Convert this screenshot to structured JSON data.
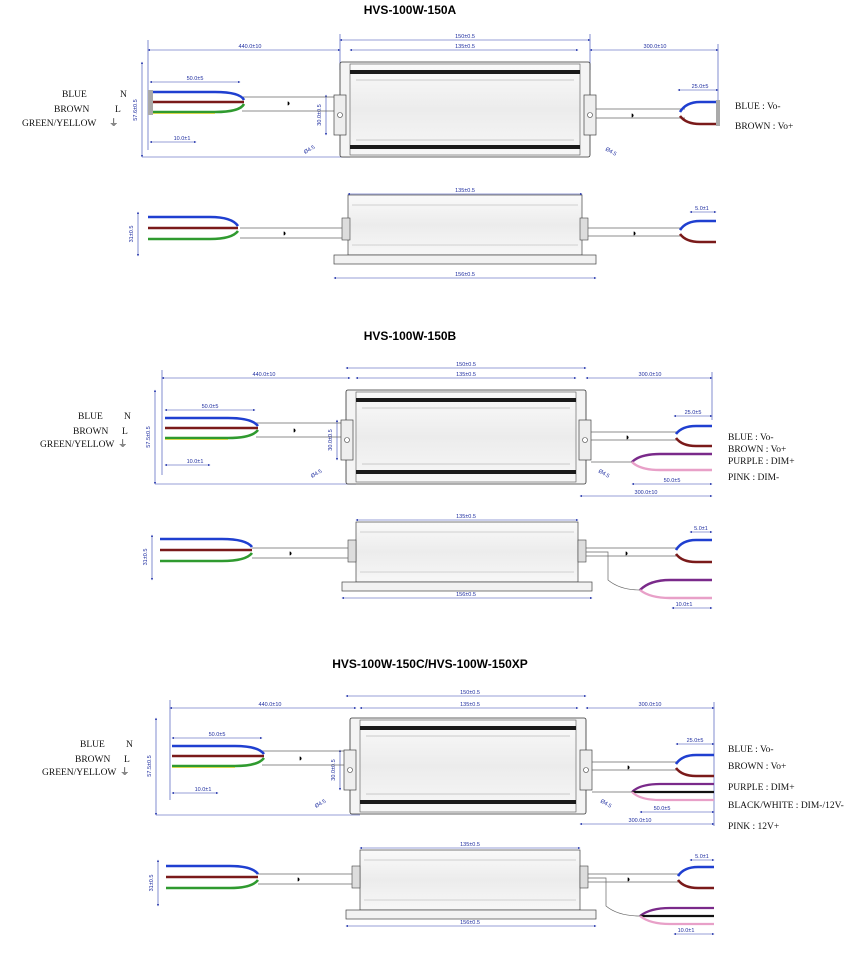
{
  "models": [
    {
      "title": "HVS-100W-150A",
      "input_wires": [
        "BLUE",
        "BROWN",
        "GREEN/YELLOW"
      ],
      "input_codes": [
        "N",
        "L",
        "⏚"
      ],
      "output_wires": [
        {
          "label": "BLUE : Vo-"
        },
        {
          "label": "BROWN : Vo+"
        }
      ],
      "dims": {
        "left_cable": "440.0±10",
        "overall": "150±0.5",
        "body": "135±0.5",
        "right_cable": "300.0±10",
        "strip_in": "50.0±5",
        "strip_out": "25.0±5",
        "height": "57.6±0.5",
        "mount": "30.0±0.5",
        "hole_l": "Ø4.5",
        "hole_r": "Ø4.5",
        "pin": "10.0±1",
        "side_body": "135±0.5",
        "side_base": "156±0.5",
        "side_h": "31±0.5",
        "side_out_strip": "5.0±1"
      }
    },
    {
      "title": "HVS-100W-150B",
      "input_wires": [
        "BLUE",
        "BROWN",
        "GREEN/YELLOW"
      ],
      "input_codes": [
        "N",
        "L",
        "⏚"
      ],
      "output_wires": [
        {
          "label": "BLUE : Vo-"
        },
        {
          "label": "BROWN : Vo+"
        },
        {
          "label": "PURPLE : DIM+"
        },
        {
          "label": "PINK : DIM-"
        }
      ],
      "dims": {
        "left_cable": "440.0±10",
        "overall": "150±0.5",
        "body": "135±0.5",
        "right_cable": "300.0±10",
        "strip_in": "50.0±5",
        "strip_out": "25.0±5",
        "height": "57.5±0.5",
        "mount": "30.0±0.5",
        "hole_l": "Ø4.5",
        "hole_r": "Ø4.5",
        "pin": "10.0±1",
        "dim_strip": "50.0±5",
        "dim_cable": "300.0±10",
        "side_body": "135±0.5",
        "side_base": "156±0.5",
        "side_h": "31±0.5",
        "side_out_strip": "5.0±1",
        "side_pin": "10.0±1"
      }
    },
    {
      "title": "HVS-100W-150C/HVS-100W-150XP",
      "input_wires": [
        "BLUE",
        "BROWN",
        "GREEN/YELLOW"
      ],
      "input_codes": [
        "N",
        "L",
        "⏚"
      ],
      "output_wires": [
        {
          "label": "BLUE : Vo-"
        },
        {
          "label": "BROWN : Vo+"
        },
        {
          "label": "PURPLE : DIM+"
        },
        {
          "label": "BLACK/WHITE : DIM-/12V-"
        },
        {
          "label": "PINK : 12V+"
        }
      ],
      "dims": {
        "left_cable": "440.0±10",
        "overall": "150±0.5",
        "body": "135±0.5",
        "right_cable": "300.0±10",
        "strip_in": "50.0±5",
        "strip_out": "25.0±5",
        "height": "57.5±0.5",
        "mount": "30.0±0.5",
        "hole_l": "Ø4.5",
        "hole_r": "Ø4.5",
        "pin": "10.0±1",
        "dim_strip": "50.0±5",
        "dim_cable": "300.0±10",
        "side_body": "135±0.5",
        "side_base": "156±0.5",
        "side_h": "31±0.5",
        "side_out_strip": "5.0±1",
        "side_pin": "10.0±1"
      }
    }
  ],
  "colors": {
    "blue": "#1f3fd0",
    "brown": "#7a1a1a",
    "green": "#2f9a2f",
    "yellow": "#d8d020",
    "purple": "#7a2a8a",
    "pink": "#e8a0c8",
    "black": "#111111",
    "dim_line": "#3040b0"
  }
}
